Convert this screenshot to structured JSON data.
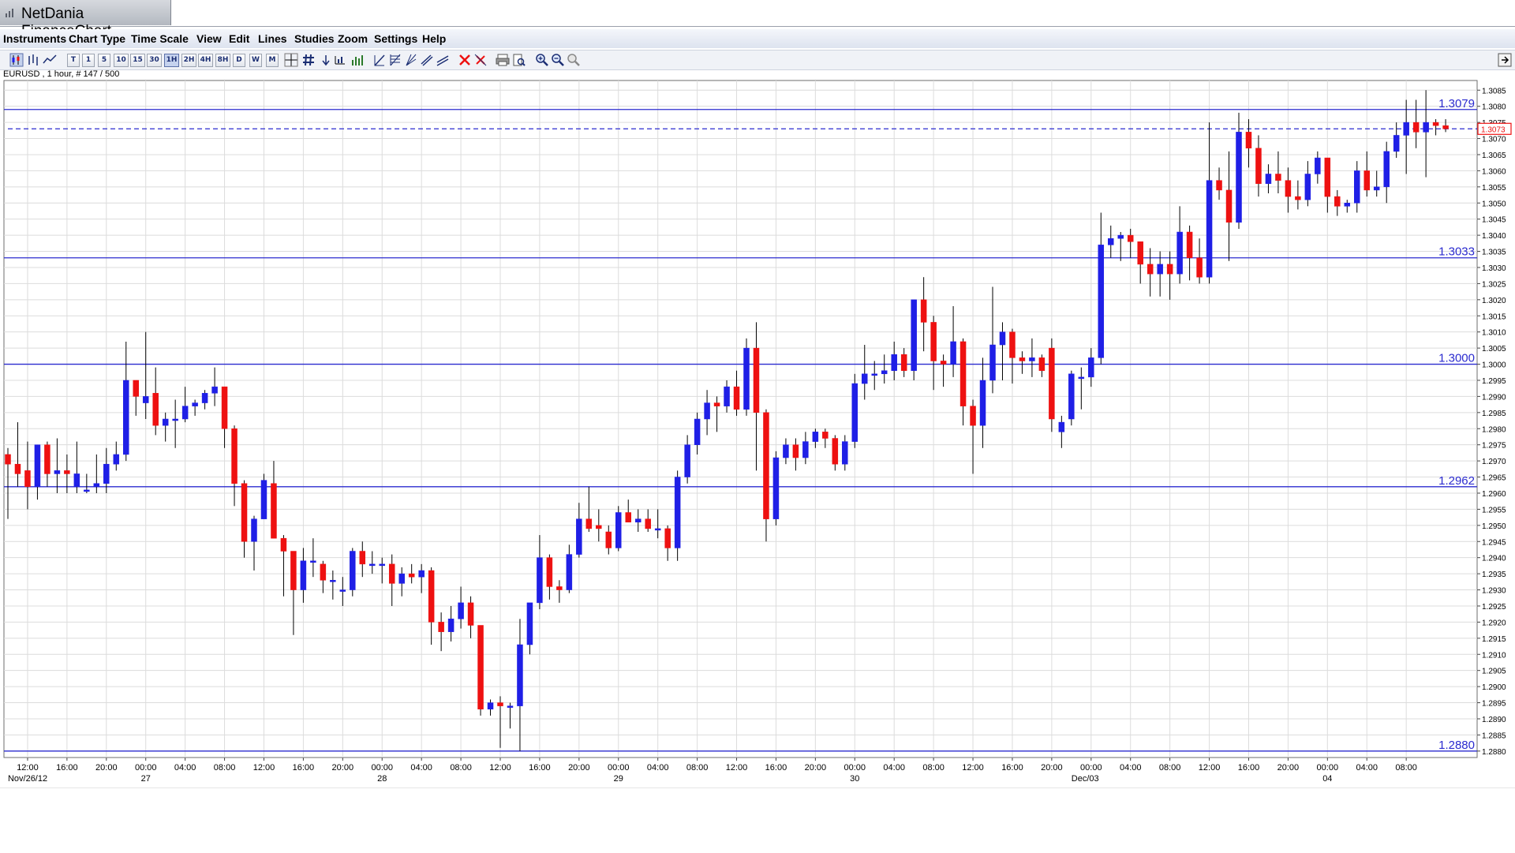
{
  "window": {
    "title": "NetDania FinanceChart"
  },
  "menu": [
    "Instruments",
    "Chart Type",
    "Time Scale",
    "View",
    "Edit",
    "Lines",
    "Studies",
    "Zoom",
    "Settings",
    "Help"
  ],
  "toolbar": {
    "chart_type_icons": [
      "candlestick-chart-icon",
      "bar-chart-icon",
      "line-chart-icon"
    ],
    "timescales": [
      "T",
      "1",
      "5",
      "10",
      "15",
      "30",
      "1H",
      "2H",
      "4H",
      "8H",
      "D",
      "W",
      "M"
    ],
    "active_timescale": "1H",
    "tool_icons": [
      "crosshair-icon",
      "grid-icon",
      "arrow-down-icon",
      "studies-icon",
      "volume-icon",
      "trendline-icon",
      "fibonacci-icon",
      "gann-icon",
      "channel-icon",
      "parallel-lines-icon",
      "delete-icon",
      "delete-all-icon",
      "print-icon",
      "print-preview-icon",
      "zoom-in-icon",
      "zoom-out-icon",
      "zoom-reset-icon"
    ],
    "right_icon": "detach-panel-icon"
  },
  "instrument_info": "EURUSD , 1 hour, # 147 / 500",
  "colors": {
    "bull": "#1f1fe6",
    "bear": "#ee1111",
    "level_line": "#2b2bcf",
    "grid": "#dcdcdc",
    "current_price": "#ee1111"
  },
  "chart_data": {
    "type": "candlestick",
    "instrument": "EURUSD",
    "interval": "1 hour",
    "ylim": [
      1.2878,
      1.3088
    ],
    "yticks": [
      1.288,
      1.2885,
      1.289,
      1.2895,
      1.29,
      1.2905,
      1.291,
      1.2915,
      1.292,
      1.2925,
      1.293,
      1.2935,
      1.294,
      1.2945,
      1.295,
      1.2955,
      1.296,
      1.2965,
      1.297,
      1.2975,
      1.298,
      1.2985,
      1.299,
      1.2995,
      1.3,
      1.3005,
      1.301,
      1.3015,
      1.302,
      1.3025,
      1.303,
      1.3035,
      1.304,
      1.3045,
      1.305,
      1.3055,
      1.306,
      1.3065,
      1.307,
      1.3075,
      1.308,
      1.3085
    ],
    "ytick_labels": [
      "1.2880",
      "1.2885",
      "1.2890",
      "1.2895",
      "1.2900",
      "1.2905",
      "1.2910",
      "1.2915",
      "1.2920",
      "1.2925",
      "1.2930",
      "1.2935",
      "1.2940",
      "1.2945",
      "1.2950",
      "1.2955",
      "1.2960",
      "1.2965",
      "1.2970",
      "1.2975",
      "1.2980",
      "1.2985",
      "1.2990",
      "1.2995",
      "1.3000",
      "1.3005",
      "1.3010",
      "1.3015",
      "1.3020",
      "1.3025",
      "1.3030",
      "1.3035",
      "1.3040",
      "1.3045",
      "1.3050",
      "1.3055",
      "1.3060",
      "1.3065",
      "1.3070",
      "1.3075",
      "1.3080",
      "1.3085"
    ],
    "time_labels": [
      {
        "index": 2,
        "time": "12:00",
        "date": "Nov/26/12"
      },
      {
        "index": 6,
        "time": "16:00",
        "date": ""
      },
      {
        "index": 10,
        "time": "20:00",
        "date": ""
      },
      {
        "index": 14,
        "time": "00:00",
        "date": "27"
      },
      {
        "index": 18,
        "time": "04:00",
        "date": ""
      },
      {
        "index": 22,
        "time": "08:00",
        "date": ""
      },
      {
        "index": 26,
        "time": "12:00",
        "date": ""
      },
      {
        "index": 30,
        "time": "16:00",
        "date": ""
      },
      {
        "index": 34,
        "time": "20:00",
        "date": ""
      },
      {
        "index": 38,
        "time": "00:00",
        "date": "28"
      },
      {
        "index": 42,
        "time": "04:00",
        "date": ""
      },
      {
        "index": 46,
        "time": "08:00",
        "date": ""
      },
      {
        "index": 50,
        "time": "12:00",
        "date": ""
      },
      {
        "index": 54,
        "time": "16:00",
        "date": ""
      },
      {
        "index": 58,
        "time": "20:00",
        "date": ""
      },
      {
        "index": 62,
        "time": "00:00",
        "date": "29"
      },
      {
        "index": 66,
        "time": "04:00",
        "date": ""
      },
      {
        "index": 70,
        "time": "08:00",
        "date": ""
      },
      {
        "index": 74,
        "time": "12:00",
        "date": ""
      },
      {
        "index": 78,
        "time": "16:00",
        "date": ""
      },
      {
        "index": 82,
        "time": "20:00",
        "date": ""
      },
      {
        "index": 86,
        "time": "00:00",
        "date": "30"
      },
      {
        "index": 90,
        "time": "04:00",
        "date": ""
      },
      {
        "index": 94,
        "time": "08:00",
        "date": ""
      },
      {
        "index": 98,
        "time": "12:00",
        "date": ""
      },
      {
        "index": 102,
        "time": "16:00",
        "date": ""
      },
      {
        "index": 106,
        "time": "20:00",
        "date": ""
      },
      {
        "index": 110,
        "time": "00:00",
        "date": "Dec/03"
      },
      {
        "index": 114,
        "time": "04:00",
        "date": ""
      },
      {
        "index": 118,
        "time": "08:00",
        "date": ""
      },
      {
        "index": 122,
        "time": "12:00",
        "date": ""
      },
      {
        "index": 126,
        "time": "16:00",
        "date": ""
      },
      {
        "index": 130,
        "time": "20:00",
        "date": ""
      },
      {
        "index": 134,
        "time": "00:00",
        "date": "04"
      },
      {
        "index": 138,
        "time": "04:00",
        "date": ""
      },
      {
        "index": 142,
        "time": "08:00",
        "date": ""
      }
    ],
    "horizontal_levels": [
      {
        "value": 1.3079,
        "label": "1.3079"
      },
      {
        "value": 1.3033,
        "label": "1.3033"
      },
      {
        "value": 1.3,
        "label": "1.3000"
      },
      {
        "value": 1.2962,
        "label": "1.2962"
      },
      {
        "value": 1.288,
        "label": "1.2880"
      }
    ],
    "current_price": {
      "value": 1.3073,
      "label": "1.3073"
    },
    "candles": [
      [
        1.2972,
        1.2974,
        1.2952,
        1.2969
      ],
      [
        1.2969,
        1.2982,
        1.2962,
        1.2966
      ],
      [
        1.2967,
        1.2976,
        1.2955,
        1.2962
      ],
      [
        1.2962,
        1.2975,
        1.2958,
        1.2975
      ],
      [
        1.2975,
        1.2976,
        1.2962,
        1.2966
      ],
      [
        1.2966,
        1.2977,
        1.296,
        1.2967
      ],
      [
        1.2967,
        1.2972,
        1.296,
        1.2966
      ],
      [
        1.2962,
        1.2976,
        1.296,
        1.2966
      ],
      [
        1.2961,
        1.2966,
        1.296,
        1.2961
      ],
      [
        1.2962,
        1.2972,
        1.296,
        1.2963
      ],
      [
        1.2963,
        1.2974,
        1.296,
        1.2969
      ],
      [
        1.2969,
        1.2976,
        1.2967,
        1.2972
      ],
      [
        1.2972,
        1.3007,
        1.297,
        1.2995
      ],
      [
        1.2995,
        1.2995,
        1.2984,
        1.299
      ],
      [
        1.2988,
        1.301,
        1.2983,
        1.299
      ],
      [
        1.2991,
        1.2999,
        1.2978,
        1.2981
      ],
      [
        1.2981,
        1.2985,
        1.2976,
        1.2983
      ],
      [
        1.2983,
        1.2989,
        1.2974,
        1.2983
      ],
      [
        1.2983,
        1.2993,
        1.2982,
        1.2987
      ],
      [
        1.2987,
        1.2989,
        1.2984,
        1.2988
      ],
      [
        1.2988,
        1.2992,
        1.2986,
        1.2991
      ],
      [
        1.2991,
        1.2999,
        1.2987,
        1.2993
      ],
      [
        1.2993,
        1.2993,
        1.2974,
        1.298
      ],
      [
        1.298,
        1.2981,
        1.2956,
        1.2963
      ],
      [
        1.2963,
        1.2964,
        1.294,
        1.2945
      ],
      [
        1.2945,
        1.2953,
        1.2936,
        1.2952
      ],
      [
        1.2952,
        1.2966,
        1.2952,
        1.2964
      ],
      [
        1.2963,
        1.297,
        1.2946,
        1.2946
      ],
      [
        1.2946,
        1.2947,
        1.2928,
        1.2942
      ],
      [
        1.2942,
        1.2942,
        1.2916,
        1.293
      ],
      [
        1.293,
        1.2943,
        1.2926,
        1.2939
      ],
      [
        1.2939,
        1.2946,
        1.2934,
        1.2939
      ],
      [
        1.2938,
        1.2939,
        1.2929,
        1.2933
      ],
      [
        1.2933,
        1.2936,
        1.2927,
        1.2933
      ],
      [
        1.293,
        1.2934,
        1.2925,
        1.293
      ],
      [
        1.293,
        1.2943,
        1.2928,
        1.2942
      ],
      [
        1.2942,
        1.2945,
        1.2934,
        1.2938
      ],
      [
        1.2938,
        1.2942,
        1.2935,
        1.2938
      ],
      [
        1.2938,
        1.294,
        1.2932,
        1.2938
      ],
      [
        1.2938,
        1.2941,
        1.2925,
        1.2932
      ],
      [
        1.2932,
        1.2937,
        1.2928,
        1.2935
      ],
      [
        1.2935,
        1.2938,
        1.2932,
        1.2934
      ],
      [
        1.2934,
        1.2938,
        1.2929,
        1.2936
      ],
      [
        1.2936,
        1.2937,
        1.2913,
        1.292
      ],
      [
        1.292,
        1.2923,
        1.2911,
        1.2917
      ],
      [
        1.2917,
        1.2925,
        1.2914,
        1.2921
      ],
      [
        1.2921,
        1.2931,
        1.2918,
        1.2926
      ],
      [
        1.2926,
        1.2928,
        1.2915,
        1.2919
      ],
      [
        1.2919,
        1.2919,
        1.2891,
        1.2893
      ],
      [
        1.2893,
        1.2896,
        1.2891,
        1.2895
      ],
      [
        1.2895,
        1.2897,
        1.2881,
        1.2894
      ],
      [
        1.2894,
        1.2895,
        1.2887,
        1.2894
      ],
      [
        1.2894,
        1.2921,
        1.288,
        1.2913
      ],
      [
        1.2913,
        1.2925,
        1.291,
        1.2926
      ],
      [
        1.2926,
        1.2947,
        1.2924,
        1.294
      ],
      [
        1.294,
        1.2941,
        1.2927,
        1.2931
      ],
      [
        1.2931,
        1.2933,
        1.2926,
        1.293
      ],
      [
        1.293,
        1.2944,
        1.2929,
        1.2941
      ],
      [
        1.2941,
        1.2957,
        1.294,
        1.2952
      ],
      [
        1.2952,
        1.2962,
        1.2948,
        1.2949
      ],
      [
        1.295,
        1.2955,
        1.2945,
        1.2949
      ],
      [
        1.2948,
        1.295,
        1.2941,
        1.2943
      ],
      [
        1.2943,
        1.2956,
        1.2942,
        1.2954
      ],
      [
        1.2954,
        1.2958,
        1.2951,
        1.2951
      ],
      [
        1.2951,
        1.2955,
        1.2948,
        1.2952
      ],
      [
        1.2952,
        1.2955,
        1.2948,
        1.2949
      ],
      [
        1.2949,
        1.2955,
        1.2946,
        1.2949
      ],
      [
        1.2949,
        1.295,
        1.2939,
        1.2943
      ],
      [
        1.2943,
        1.2967,
        1.2939,
        1.2965
      ],
      [
        1.2965,
        1.2978,
        1.2963,
        1.2975
      ],
      [
        1.2975,
        1.2985,
        1.2972,
        1.2983
      ],
      [
        1.2983,
        1.2992,
        1.2978,
        1.2988
      ],
      [
        1.2988,
        1.299,
        1.2979,
        1.2987
      ],
      [
        1.2987,
        1.2995,
        1.2985,
        1.2993
      ],
      [
        1.2993,
        1.2998,
        1.2984,
        1.2986
      ],
      [
        1.2986,
        1.3008,
        1.2984,
        1.3005
      ],
      [
        1.3005,
        1.3013,
        1.2967,
        1.2985
      ],
      [
        1.2985,
        1.2986,
        1.2945,
        1.2952
      ],
      [
        1.2952,
        1.2973,
        1.295,
        1.2971
      ],
      [
        1.2971,
        1.2977,
        1.2969,
        1.2975
      ],
      [
        1.2975,
        1.2977,
        1.2967,
        1.2971
      ],
      [
        1.2971,
        1.2979,
        1.2969,
        1.2976
      ],
      [
        1.2976,
        1.298,
        1.2974,
        1.2979
      ],
      [
        1.2979,
        1.298,
        1.2974,
        1.2977
      ],
      [
        1.2977,
        1.2978,
        1.2967,
        1.2969
      ],
      [
        1.2969,
        1.2978,
        1.2967,
        1.2976
      ],
      [
        1.2976,
        1.2997,
        1.2974,
        1.2994
      ],
      [
        1.2994,
        1.3006,
        1.2989,
        1.2997
      ],
      [
        1.2997,
        1.3001,
        1.2992,
        1.2997
      ],
      [
        1.2997,
        1.3003,
        1.2994,
        1.2998
      ],
      [
        1.2998,
        1.3007,
        1.2995,
        1.3003
      ],
      [
        1.3003,
        1.3005,
        1.2996,
        1.2998
      ],
      [
        1.2998,
        1.302,
        1.2995,
        1.302
      ],
      [
        1.302,
        1.3027,
        1.3004,
        1.3013
      ],
      [
        1.3013,
        1.3015,
        1.2992,
        1.3001
      ],
      [
        1.3001,
        1.3003,
        1.2993,
        1.3
      ],
      [
        1.3,
        1.3018,
        1.2996,
        1.3007
      ],
      [
        1.3007,
        1.3008,
        1.2981,
        1.2987
      ],
      [
        1.2987,
        1.2989,
        1.2966,
        1.2981
      ],
      [
        1.2981,
        1.3002,
        1.2974,
        1.2995
      ],
      [
        1.2995,
        1.3024,
        1.2991,
        1.3006
      ],
      [
        1.3006,
        1.3013,
        1.2995,
        1.301
      ],
      [
        1.301,
        1.3011,
        1.2994,
        1.3002
      ],
      [
        1.3002,
        1.3004,
        1.2997,
        1.3001
      ],
      [
        1.3001,
        1.3008,
        1.2996,
        1.3002
      ],
      [
        1.3002,
        1.3003,
        1.2996,
        1.2998
      ],
      [
        1.3005,
        1.3008,
        1.2979,
        1.2983
      ],
      [
        1.2979,
        1.2984,
        1.2974,
        1.2982
      ],
      [
        1.2983,
        1.2998,
        1.2981,
        1.2997
      ],
      [
        1.2996,
        1.2999,
        1.2986,
        1.2996
      ],
      [
        1.2996,
        1.3005,
        1.2993,
        1.3002
      ],
      [
        1.3002,
        1.3047,
        1.3,
        1.3037
      ],
      [
        1.3037,
        1.3043,
        1.3033,
        1.3039
      ],
      [
        1.3039,
        1.3041,
        1.3032,
        1.304
      ],
      [
        1.304,
        1.3042,
        1.3033,
        1.3038
      ],
      [
        1.3038,
        1.3038,
        1.3025,
        1.3031
      ],
      [
        1.3031,
        1.3036,
        1.3021,
        1.3028
      ],
      [
        1.3028,
        1.3035,
        1.3021,
        1.3031
      ],
      [
        1.3031,
        1.3035,
        1.302,
        1.3028
      ],
      [
        1.3028,
        1.3049,
        1.3025,
        1.3041
      ],
      [
        1.3041,
        1.3043,
        1.3026,
        1.3033
      ],
      [
        1.3033,
        1.3039,
        1.3025,
        1.3027
      ],
      [
        1.3027,
        1.3075,
        1.3025,
        1.3057
      ],
      [
        1.3057,
        1.3061,
        1.3051,
        1.3054
      ],
      [
        1.3054,
        1.3066,
        1.3032,
        1.3044
      ],
      [
        1.3044,
        1.3078,
        1.3042,
        1.3072
      ],
      [
        1.3072,
        1.3076,
        1.3061,
        1.3067
      ],
      [
        1.3067,
        1.3071,
        1.3052,
        1.3056
      ],
      [
        1.3056,
        1.3062,
        1.3053,
        1.3059
      ],
      [
        1.3059,
        1.3066,
        1.3053,
        1.3057
      ],
      [
        1.3057,
        1.3061,
        1.3047,
        1.3052
      ],
      [
        1.3052,
        1.3057,
        1.3048,
        1.3051
      ],
      [
        1.3051,
        1.3063,
        1.3049,
        1.3059
      ],
      [
        1.3059,
        1.3066,
        1.3056,
        1.3064
      ],
      [
        1.3064,
        1.3064,
        1.3047,
        1.3052
      ],
      [
        1.3052,
        1.3054,
        1.3046,
        1.3049
      ],
      [
        1.3049,
        1.3051,
        1.3047,
        1.305
      ],
      [
        1.305,
        1.3063,
        1.3047,
        1.306
      ],
      [
        1.306,
        1.3066,
        1.3052,
        1.3054
      ],
      [
        1.3054,
        1.306,
        1.3052,
        1.3055
      ],
      [
        1.3055,
        1.3069,
        1.305,
        1.3066
      ],
      [
        1.3066,
        1.3075,
        1.3064,
        1.3071
      ],
      [
        1.3071,
        1.3082,
        1.3059,
        1.3075
      ],
      [
        1.3075,
        1.3082,
        1.3067,
        1.3072
      ],
      [
        1.3072,
        1.3085,
        1.3058,
        1.3075
      ],
      [
        1.3075,
        1.3076,
        1.3071,
        1.3074
      ],
      [
        1.3074,
        1.3076,
        1.3072,
        1.3073
      ]
    ]
  }
}
